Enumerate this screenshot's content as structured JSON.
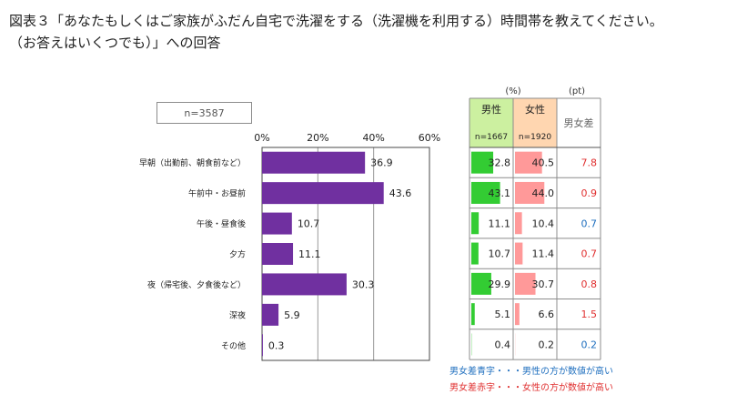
{
  "title_line1": "図表３「あなたもしくはご家族がふだん自宅で洗濯をする（洗濯機を利用する）時間帯を教えてください。",
  "title_line2": "（お答えはいくつでも）」への回答",
  "sample_n": "n=3587",
  "colors": {
    "bar": "#7030a0",
    "male_bar": "#33cc33",
    "female_bar": "#ff9999",
    "male_header": "#ccf0a0",
    "female_header": "#ffd6b0",
    "diff_pos": "#e03030",
    "diff_neg": "#1f6fbf"
  },
  "chart_data": {
    "type": "bar",
    "orientation": "horizontal",
    "xlim": [
      0,
      60
    ],
    "ticks": [
      "0%",
      "20%",
      "40%",
      "60%"
    ],
    "tick_values": [
      0,
      20,
      40,
      60
    ],
    "categories": [
      "早朝（出勤前、朝食前など）",
      "午前中・お昼前",
      "午後・昼食後",
      "夕方",
      "夜（帰宅後、夕食後など）",
      "深夜",
      "その他"
    ],
    "values": [
      36.9,
      43.6,
      10.7,
      11.1,
      30.3,
      5.9,
      0.3
    ],
    "value_labels": [
      "36.9",
      "43.6",
      "10.7",
      "11.1",
      "30.3",
      "5.9",
      "0.3"
    ]
  },
  "table": {
    "unit_pct": "(%)",
    "unit_pt": "(pt)",
    "male_header": "男性",
    "male_n": "n=1667",
    "female_header": "女性",
    "female_n": "n=1920",
    "diff_header": "男女差",
    "male": [
      32.8,
      43.1,
      11.1,
      10.7,
      29.9,
      5.1,
      0.4
    ],
    "female": [
      40.5,
      44.0,
      10.4,
      11.4,
      30.7,
      6.6,
      0.2
    ],
    "male_labels": [
      "32.8",
      "43.1",
      "11.1",
      "10.7",
      "29.9",
      "5.1",
      "0.4"
    ],
    "female_labels": [
      "40.5",
      "44.0",
      "10.4",
      "11.4",
      "30.7",
      "6.6",
      "0.2"
    ],
    "diff": [
      "7.8",
      "0.9",
      "0.7",
      "0.7",
      "0.8",
      "1.5",
      "0.2"
    ],
    "diff_sign": [
      "female",
      "female",
      "male",
      "female",
      "female",
      "female",
      "male"
    ],
    "scale_max": 60
  },
  "legend": {
    "blue": "男女差青字・・・男性の方が数値が高い",
    "red": "男女差赤字・・・女性の方が数値が高い"
  }
}
